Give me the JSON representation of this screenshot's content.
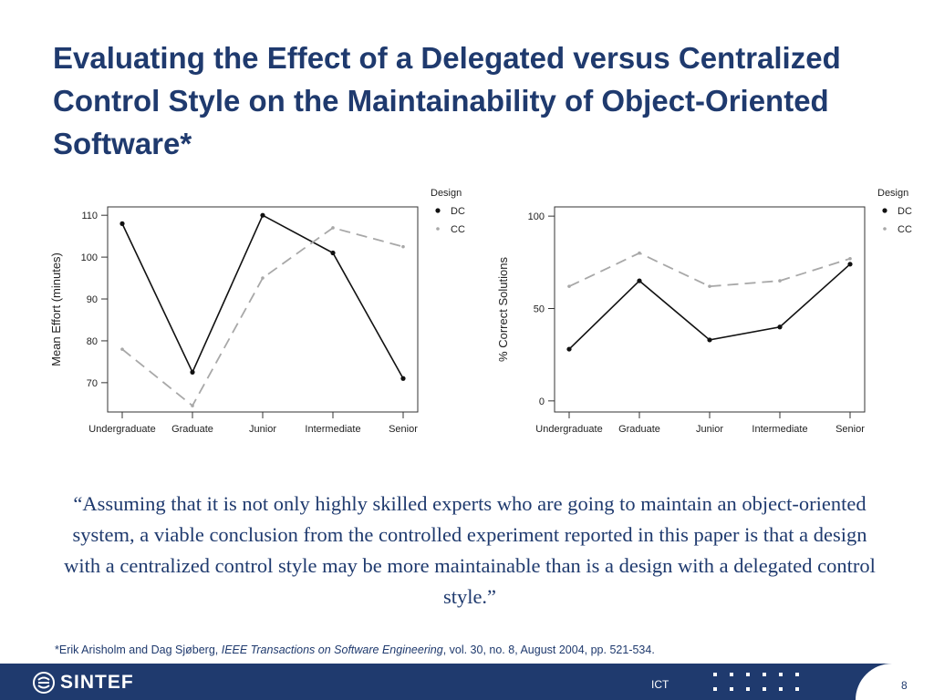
{
  "slide": {
    "title": "Evaluating the Effect of a Delegated versus Centralized Control Style on the Maintainability of Object-Oriented Software*",
    "quote": "“Assuming that it is not only highly skilled experts who are going to maintain an object-oriented system, a viable conclusion from the controlled experiment reported in this paper is that a design with a centralized control style may be more maintainable than is a design with a delegated control style.”",
    "citation": {
      "prefix": "*Erik Arisholm and Dag Sjøberg, ",
      "journal": "IEEE Transactions on Software Engineering",
      "suffix": ", vol. 30, no. 8, August 2004, pp. 521-534."
    },
    "page_number": "8"
  },
  "footer": {
    "logo_text": "SINTEF",
    "department": "ICT",
    "bar_color": "#1f3a6e"
  },
  "colors": {
    "title": "#1f3a6e",
    "series_dc": "#111111",
    "series_cc": "#a8a8a8"
  },
  "chart_data": [
    {
      "type": "line",
      "categories": [
        "Undergraduate",
        "Graduate",
        "Junior",
        "Intermediate",
        "Senior"
      ],
      "ylabel": "Mean Effort (minutes)",
      "xlabel": "",
      "ylim": [
        63,
        112
      ],
      "yticks": [
        70,
        80,
        90,
        100,
        110
      ],
      "legend": {
        "title": "Design",
        "placement": "top-right outside"
      },
      "series": [
        {
          "name": "DC",
          "style": "solid",
          "values": [
            108,
            72.5,
            110,
            101,
            71
          ]
        },
        {
          "name": "CC",
          "style": "dashed",
          "values": [
            78,
            64.5,
            95,
            107,
            102.5
          ]
        }
      ]
    },
    {
      "type": "line",
      "categories": [
        "Undergraduate",
        "Graduate",
        "Junior",
        "Intermediate",
        "Senior"
      ],
      "ylabel": "% Correct Solutions",
      "xlabel": "",
      "ylim": [
        -6,
        105
      ],
      "yticks": [
        0,
        50,
        100
      ],
      "legend": {
        "title": "Design",
        "placement": "top-right outside"
      },
      "series": [
        {
          "name": "DC",
          "style": "solid",
          "values": [
            28,
            65,
            33,
            40,
            74
          ]
        },
        {
          "name": "CC",
          "style": "dashed",
          "values": [
            62,
            80,
            62,
            65,
            77
          ]
        }
      ]
    }
  ]
}
